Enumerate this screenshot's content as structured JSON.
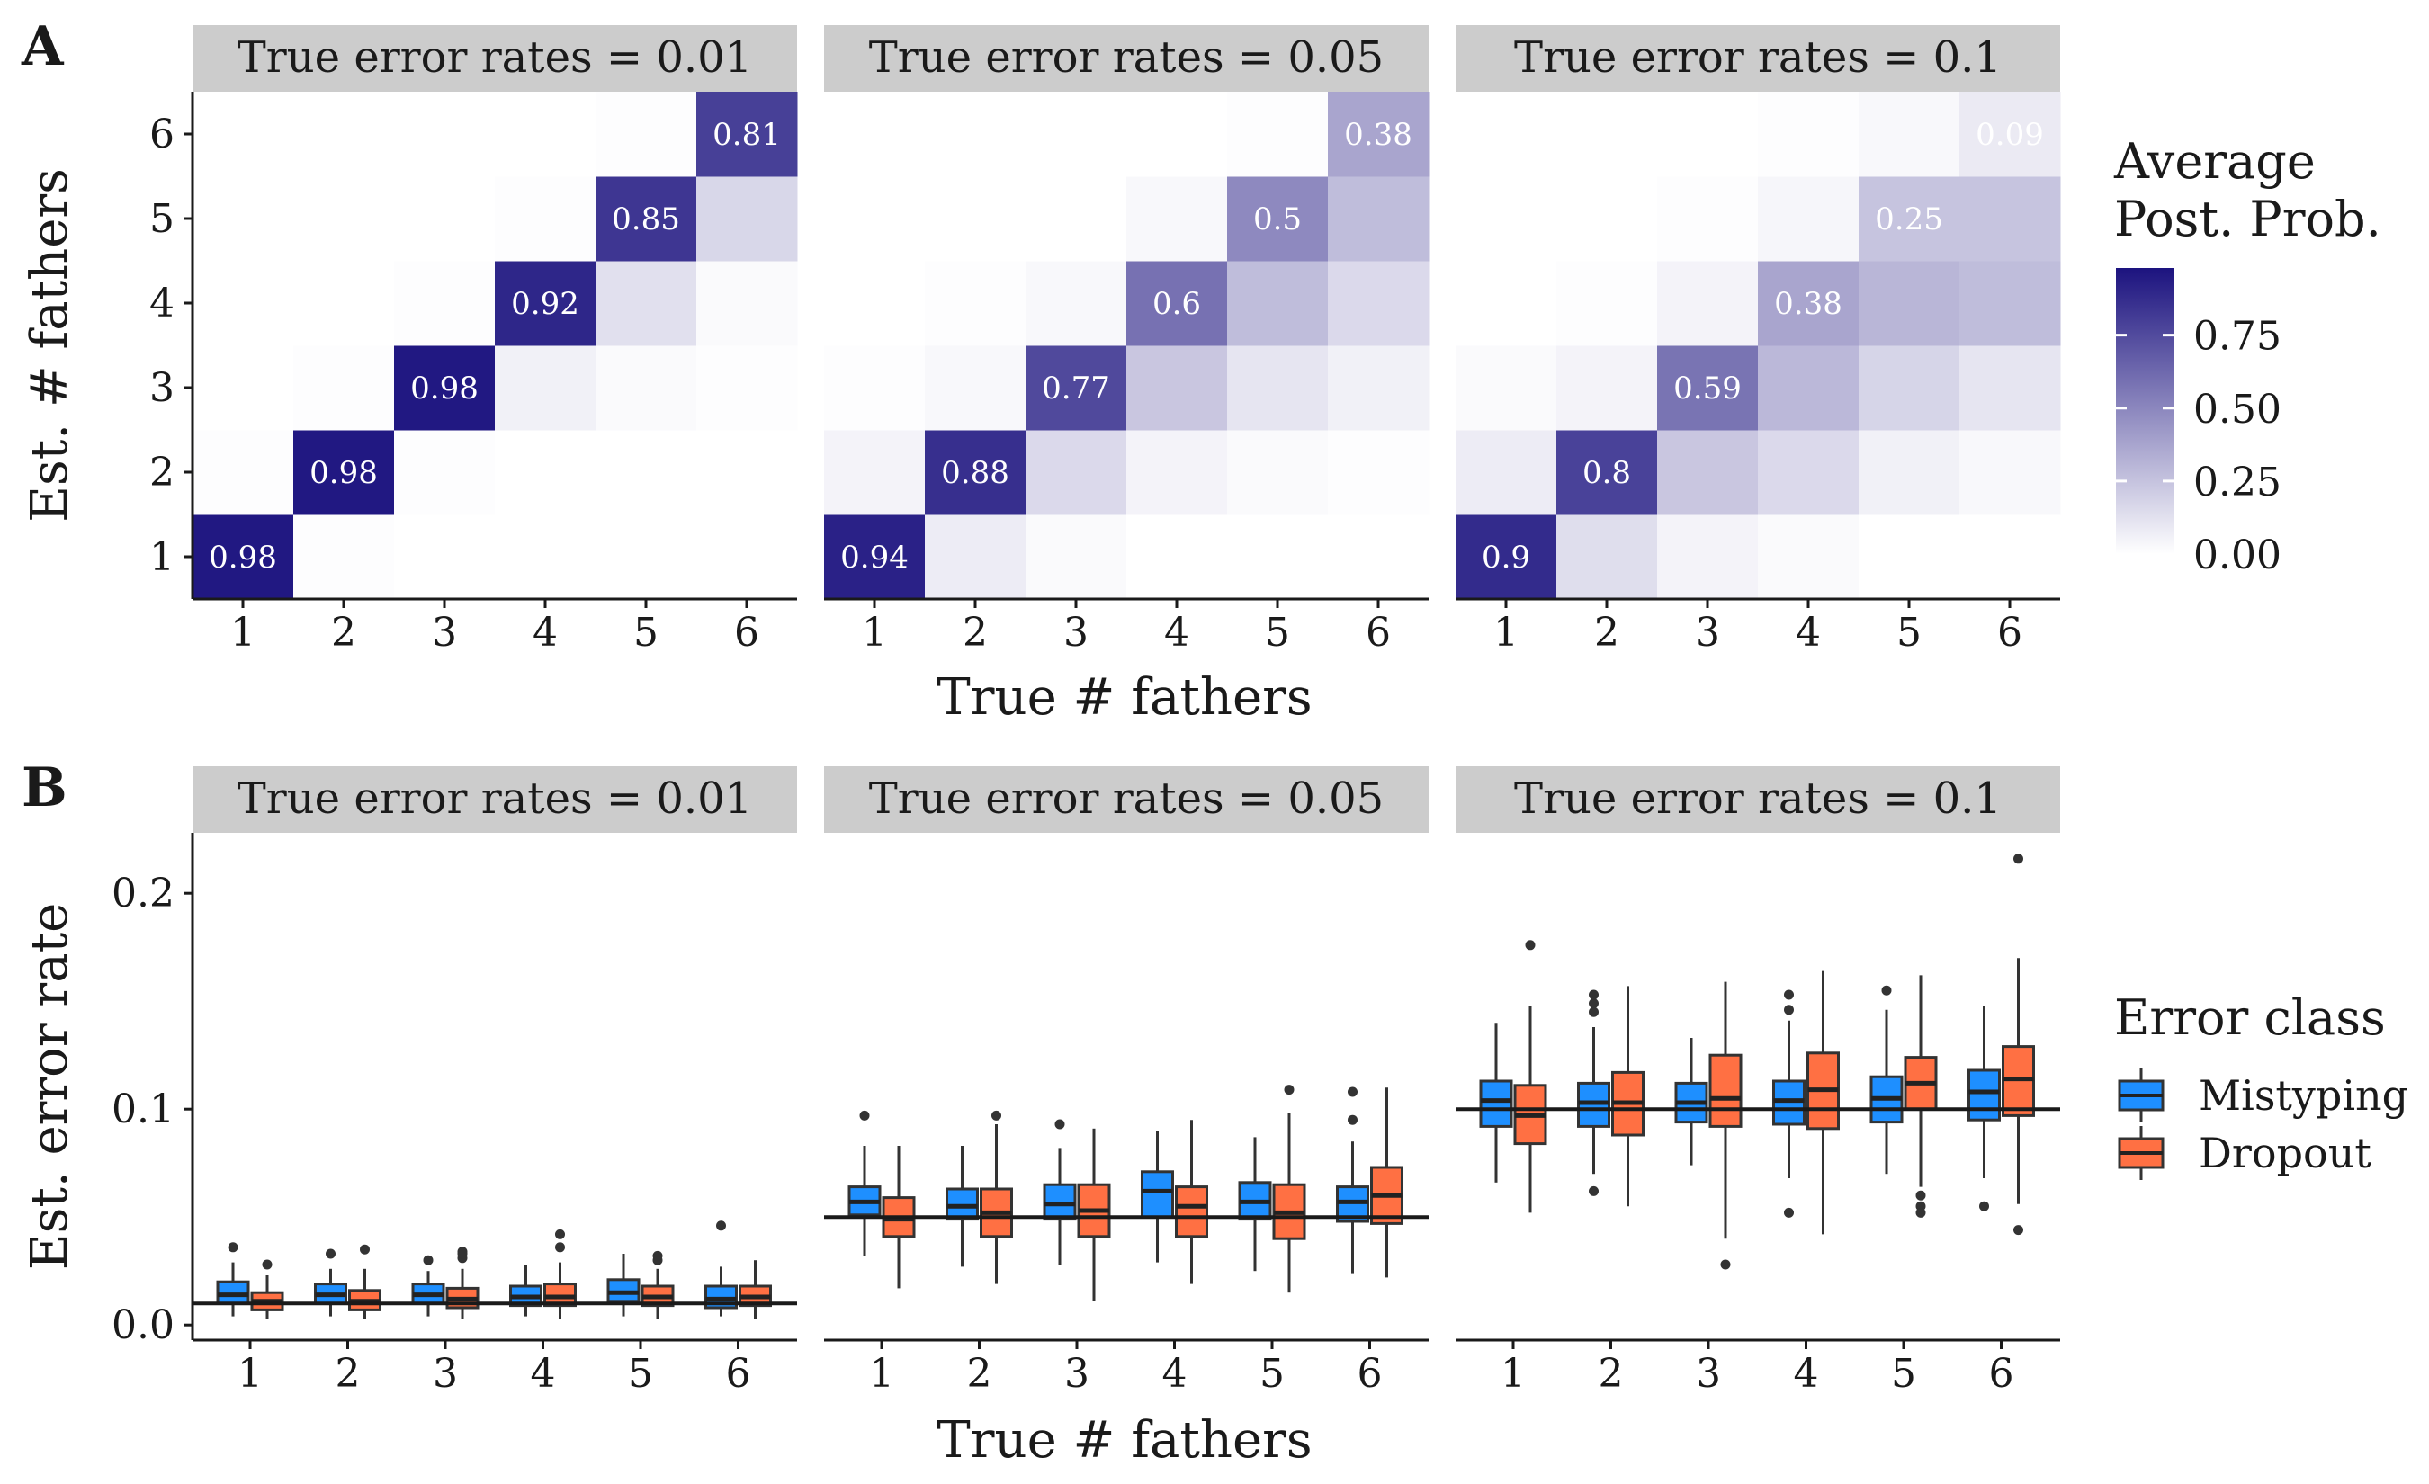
{
  "panel_tags": {
    "a": "A",
    "b": "B"
  },
  "facet_labels": [
    "True error rates = 0.01",
    "True error rates = 0.05",
    "True error rates = 0.1"
  ],
  "colors": {
    "heat_low": "#ffffff",
    "heat_high": "#1c137f",
    "mistyping": "#1e8fff",
    "dropout": "#ff7043",
    "strip_bg": "#cccccc",
    "axis": "#1a1a1a"
  },
  "chart_data": [
    {
      "type": "heatmap",
      "panel": "A",
      "facets": [
        "True error rates = 0.01",
        "True error rates = 0.05",
        "True error rates = 0.1"
      ],
      "x_categories": [
        "1",
        "2",
        "3",
        "4",
        "5",
        "6"
      ],
      "y_categories": [
        "1",
        "2",
        "3",
        "4",
        "5",
        "6"
      ],
      "xlabel": "True # fathers",
      "ylabel": "Est. # fathers",
      "value_range": [
        0,
        1
      ],
      "legend": {
        "title_lines": [
          "Average",
          "Post. Prob."
        ],
        "ticks": [
          "0.00",
          "0.25",
          "0.50",
          "0.75"
        ],
        "tick_values": [
          0,
          0.25,
          0.5,
          0.75
        ],
        "placement": "right"
      },
      "facet_values": [
        [
          [
            0.98,
            0.01,
            0,
            0,
            0,
            0
          ],
          [
            0.01,
            0.98,
            0.01,
            0,
            0,
            0
          ],
          [
            0,
            0.01,
            0.98,
            0.06,
            0.02,
            0.01
          ],
          [
            0,
            0,
            0.01,
            0.92,
            0.13,
            0.02
          ],
          [
            0,
            0,
            0,
            0.01,
            0.85,
            0.17
          ],
          [
            0,
            0,
            0,
            0,
            0.01,
            0.81
          ]
        ],
        [
          [
            0.94,
            0.08,
            0.02,
            0,
            0,
            0
          ],
          [
            0.05,
            0.88,
            0.16,
            0.05,
            0.02,
            0.01
          ],
          [
            0.01,
            0.03,
            0.77,
            0.24,
            0.11,
            0.06
          ],
          [
            0,
            0.01,
            0.03,
            0.6,
            0.28,
            0.16
          ],
          [
            0,
            0,
            0,
            0.03,
            0.5,
            0.28
          ],
          [
            0,
            0,
            0,
            0,
            0.01,
            0.38
          ]
        ],
        [
          [
            0.9,
            0.14,
            0.05,
            0.02,
            0,
            0
          ],
          [
            0.08,
            0.8,
            0.24,
            0.16,
            0.06,
            0.03
          ],
          [
            0.02,
            0.05,
            0.59,
            0.3,
            0.18,
            0.11
          ],
          [
            0,
            0.01,
            0.05,
            0.38,
            0.31,
            0.28
          ],
          [
            0,
            0,
            0.01,
            0.04,
            0.25,
            0.25
          ],
          [
            0,
            0,
            0,
            0.01,
            0.03,
            0.09
          ]
        ]
      ],
      "labeled_values": [
        [
          "0.98",
          "0.98",
          "0.98",
          "0.92",
          "0.85",
          "0.81"
        ],
        [
          "0.94",
          "0.88",
          "0.77",
          "0.6",
          "0.5",
          "0.38"
        ],
        [
          "0.9",
          "0.8",
          "0.59",
          "0.38",
          "0.25",
          "0.09"
        ]
      ],
      "grid": false
    },
    {
      "type": "box",
      "panel": "B",
      "facets": [
        "True error rates = 0.01",
        "True error rates = 0.05",
        "True error rates = 0.1"
      ],
      "categories": [
        "1",
        "2",
        "3",
        "4",
        "5",
        "6"
      ],
      "xlabel": "True # fathers",
      "ylabel": "Est. error rate",
      "ylim": [
        -0.007,
        0.228
      ],
      "y_ticks": [
        0.0,
        0.1,
        0.2
      ],
      "y_tick_labels": [
        "0.0",
        "0.1",
        "0.2"
      ],
      "reference_lines": [
        0.01,
        0.05,
        0.1
      ],
      "legend": {
        "title": "Error class",
        "placement": "right"
      },
      "grid": false,
      "series": [
        {
          "name": "Mistyping",
          "facets": [
            [
              {
                "min": 0.004,
                "q1": 0.01,
                "median": 0.014,
                "q3": 0.02,
                "max": 0.029,
                "outliers": [
                  0.036
                ]
              },
              {
                "min": 0.004,
                "q1": 0.01,
                "median": 0.014,
                "q3": 0.019,
                "max": 0.026,
                "outliers": [
                  0.033
                ]
              },
              {
                "min": 0.004,
                "q1": 0.01,
                "median": 0.014,
                "q3": 0.019,
                "max": 0.025,
                "outliers": [
                  0.03
                ]
              },
              {
                "min": 0.004,
                "q1": 0.009,
                "median": 0.013,
                "q3": 0.018,
                "max": 0.028,
                "outliers": []
              },
              {
                "min": 0.004,
                "q1": 0.011,
                "median": 0.015,
                "q3": 0.021,
                "max": 0.033,
                "outliers": []
              },
              {
                "min": 0.004,
                "q1": 0.008,
                "median": 0.012,
                "q3": 0.018,
                "max": 0.027,
                "outliers": [
                  0.046
                ]
              }
            ],
            [
              {
                "min": 0.032,
                "q1": 0.051,
                "median": 0.057,
                "q3": 0.064,
                "max": 0.083,
                "outliers": [
                  0.097
                ]
              },
              {
                "min": 0.027,
                "q1": 0.049,
                "median": 0.055,
                "q3": 0.063,
                "max": 0.083,
                "outliers": []
              },
              {
                "min": 0.028,
                "q1": 0.049,
                "median": 0.056,
                "q3": 0.065,
                "max": 0.082,
                "outliers": [
                  0.093
                ]
              },
              {
                "min": 0.029,
                "q1": 0.05,
                "median": 0.062,
                "q3": 0.071,
                "max": 0.09,
                "outliers": []
              },
              {
                "min": 0.025,
                "q1": 0.049,
                "median": 0.057,
                "q3": 0.066,
                "max": 0.087,
                "outliers": []
              },
              {
                "min": 0.024,
                "q1": 0.048,
                "median": 0.057,
                "q3": 0.064,
                "max": 0.085,
                "outliers": [
                  0.095,
                  0.108
                ]
              }
            ],
            [
              {
                "min": 0.066,
                "q1": 0.092,
                "median": 0.104,
                "q3": 0.113,
                "max": 0.14,
                "outliers": []
              },
              {
                "min": 0.07,
                "q1": 0.092,
                "median": 0.103,
                "q3": 0.112,
                "max": 0.138,
                "outliers": [
                  0.145,
                  0.149,
                  0.153,
                  0.062
                ]
              },
              {
                "min": 0.074,
                "q1": 0.094,
                "median": 0.103,
                "q3": 0.112,
                "max": 0.133,
                "outliers": []
              },
              {
                "min": 0.068,
                "q1": 0.093,
                "median": 0.104,
                "q3": 0.113,
                "max": 0.141,
                "outliers": [
                  0.146,
                  0.153,
                  0.052
                ]
              },
              {
                "min": 0.07,
                "q1": 0.094,
                "median": 0.105,
                "q3": 0.115,
                "max": 0.146,
                "outliers": [
                  0.155
                ]
              },
              {
                "min": 0.068,
                "q1": 0.095,
                "median": 0.108,
                "q3": 0.118,
                "max": 0.148,
                "outliers": [
                  0.055
                ]
              }
            ]
          ]
        },
        {
          "name": "Dropout",
          "facets": [
            [
              {
                "min": 0.003,
                "q1": 0.007,
                "median": 0.011,
                "q3": 0.015,
                "max": 0.023,
                "outliers": [
                  0.028
                ]
              },
              {
                "min": 0.003,
                "q1": 0.007,
                "median": 0.011,
                "q3": 0.016,
                "max": 0.026,
                "outliers": [
                  0.035
                ]
              },
              {
                "min": 0.003,
                "q1": 0.008,
                "median": 0.012,
                "q3": 0.017,
                "max": 0.026,
                "outliers": [
                  0.031,
                  0.033,
                  0.034
                ]
              },
              {
                "min": 0.003,
                "q1": 0.009,
                "median": 0.013,
                "q3": 0.019,
                "max": 0.029,
                "outliers": [
                  0.036,
                  0.042
                ]
              },
              {
                "min": 0.003,
                "q1": 0.009,
                "median": 0.013,
                "q3": 0.018,
                "max": 0.026,
                "outliers": [
                  0.03,
                  0.032
                ]
              },
              {
                "min": 0.003,
                "q1": 0.009,
                "median": 0.013,
                "q3": 0.018,
                "max": 0.03,
                "outliers": []
              }
            ],
            [
              {
                "min": 0.017,
                "q1": 0.041,
                "median": 0.049,
                "q3": 0.059,
                "max": 0.083,
                "outliers": []
              },
              {
                "min": 0.019,
                "q1": 0.041,
                "median": 0.052,
                "q3": 0.063,
                "max": 0.093,
                "outliers": [
                  0.097
                ]
              },
              {
                "min": 0.011,
                "q1": 0.041,
                "median": 0.053,
                "q3": 0.065,
                "max": 0.091,
                "outliers": []
              },
              {
                "min": 0.019,
                "q1": 0.041,
                "median": 0.055,
                "q3": 0.064,
                "max": 0.095,
                "outliers": []
              },
              {
                "min": 0.015,
                "q1": 0.04,
                "median": 0.052,
                "q3": 0.065,
                "max": 0.098,
                "outliers": [
                  0.109
                ]
              },
              {
                "min": 0.022,
                "q1": 0.047,
                "median": 0.06,
                "q3": 0.073,
                "max": 0.11,
                "outliers": []
              }
            ],
            [
              {
                "min": 0.052,
                "q1": 0.084,
                "median": 0.097,
                "q3": 0.111,
                "max": 0.148,
                "outliers": [
                  0.176
                ]
              },
              {
                "min": 0.055,
                "q1": 0.088,
                "median": 0.103,
                "q3": 0.117,
                "max": 0.157,
                "outliers": []
              },
              {
                "min": 0.04,
                "q1": 0.092,
                "median": 0.105,
                "q3": 0.125,
                "max": 0.159,
                "outliers": [
                  0.028
                ]
              },
              {
                "min": 0.042,
                "q1": 0.091,
                "median": 0.109,
                "q3": 0.126,
                "max": 0.164,
                "outliers": []
              },
              {
                "min": 0.064,
                "q1": 0.1,
                "median": 0.112,
                "q3": 0.124,
                "max": 0.162,
                "outliers": [
                  0.06,
                  0.055,
                  0.052
                ]
              },
              {
                "min": 0.056,
                "q1": 0.097,
                "median": 0.114,
                "q3": 0.129,
                "max": 0.17,
                "outliers": [
                  0.216,
                  0.044
                ]
              }
            ]
          ]
        }
      ]
    }
  ]
}
